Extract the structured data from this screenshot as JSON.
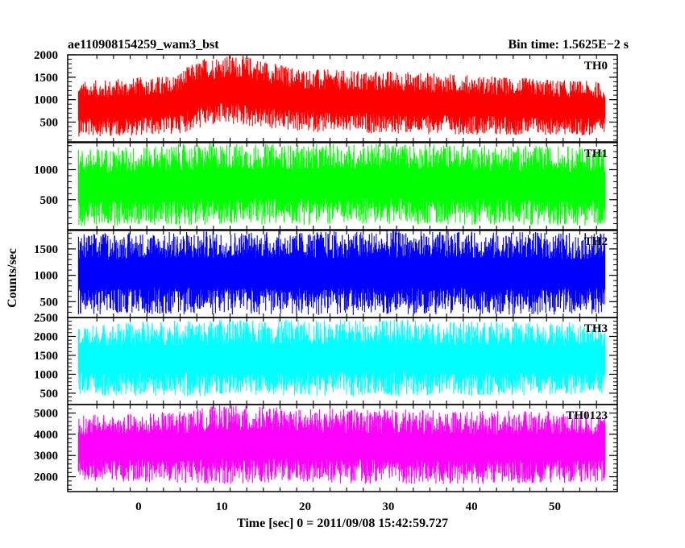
{
  "chart_data": {
    "type": "line",
    "title_left": "ae110908154259_wam3_bst",
    "title_right": "Bin time: 1.5625E−2  s",
    "xlabel": "Time [sec] 0 = 2011/09/08 15:42:59.727",
    "ylabel": "Counts/sec",
    "xlim": [
      -8.5,
      57.5
    ],
    "x_ticks": [
      0,
      10,
      20,
      30,
      40,
      50
    ],
    "data_x_range": [
      -7.2,
      56.0
    ],
    "grid": false,
    "panels": [
      {
        "name": "TH0",
        "color": "#ff0000",
        "ylim": [
          60,
          2000
        ],
        "y_ticks": [
          500,
          1000,
          1500,
          2000
        ],
        "envelope": {
          "x": [
            -7.2,
            -4,
            0,
            4,
            6,
            8,
            10,
            12,
            14,
            16,
            18,
            20,
            25,
            30,
            35,
            40,
            45,
            50,
            56
          ],
          "upper": [
            1400,
            1450,
            1500,
            1550,
            1750,
            1950,
            2000,
            2000,
            1950,
            1850,
            1750,
            1700,
            1650,
            1650,
            1600,
            1550,
            1500,
            1450,
            1400
          ],
          "lower": [
            180,
            180,
            200,
            220,
            280,
            380,
            420,
            420,
            380,
            330,
            300,
            280,
            260,
            240,
            230,
            220,
            210,
            200,
            190
          ]
        }
      },
      {
        "name": "TH1",
        "color": "#00ff00",
        "ylim": [
          0,
          1450
        ],
        "y_ticks": [
          500,
          1000
        ],
        "envelope": {
          "x": [
            -7.2,
            0,
            10,
            20,
            30,
            40,
            50,
            56
          ],
          "upper": [
            1350,
            1400,
            1450,
            1420,
            1450,
            1420,
            1400,
            1380
          ],
          "lower": [
            60,
            70,
            80,
            80,
            90,
            80,
            70,
            60
          ]
        }
      },
      {
        "name": "TH2",
        "color": "#0000ff",
        "ylim": [
          200,
          1850
        ],
        "y_ticks": [
          500,
          1000,
          1500
        ],
        "envelope": {
          "x": [
            -7.2,
            0,
            10,
            20,
            30,
            40,
            50,
            56
          ],
          "upper": [
            1800,
            1820,
            1850,
            1840,
            1850,
            1830,
            1820,
            1800
          ],
          "lower": [
            250,
            260,
            250,
            240,
            250,
            260,
            250,
            260
          ]
        }
      },
      {
        "name": "TH3",
        "color": "#00ffff",
        "ylim": [
          200,
          2500
        ],
        "y_ticks": [
          500,
          1000,
          1500,
          2000,
          2500
        ],
        "envelope": {
          "x": [
            -7.2,
            0,
            10,
            20,
            30,
            40,
            50,
            56
          ],
          "upper": [
            2300,
            2400,
            2450,
            2450,
            2450,
            2400,
            2400,
            2350
          ],
          "lower": [
            450,
            420,
            400,
            420,
            400,
            420,
            430,
            450
          ]
        }
      },
      {
        "name": "TH0123",
        "color": "#ff00ff",
        "ylim": [
          1300,
          5400
        ],
        "y_ticks": [
          2000,
          3000,
          4000,
          5000
        ],
        "envelope": {
          "x": [
            -7.2,
            0,
            5,
            10,
            15,
            20,
            30,
            40,
            50,
            56
          ],
          "upper": [
            4900,
            5000,
            5100,
            5400,
            5300,
            5200,
            5200,
            5100,
            5100,
            5000
          ],
          "lower": [
            1800,
            1750,
            1700,
            1650,
            1700,
            1700,
            1650,
            1650,
            1700,
            1750
          ]
        }
      }
    ]
  }
}
